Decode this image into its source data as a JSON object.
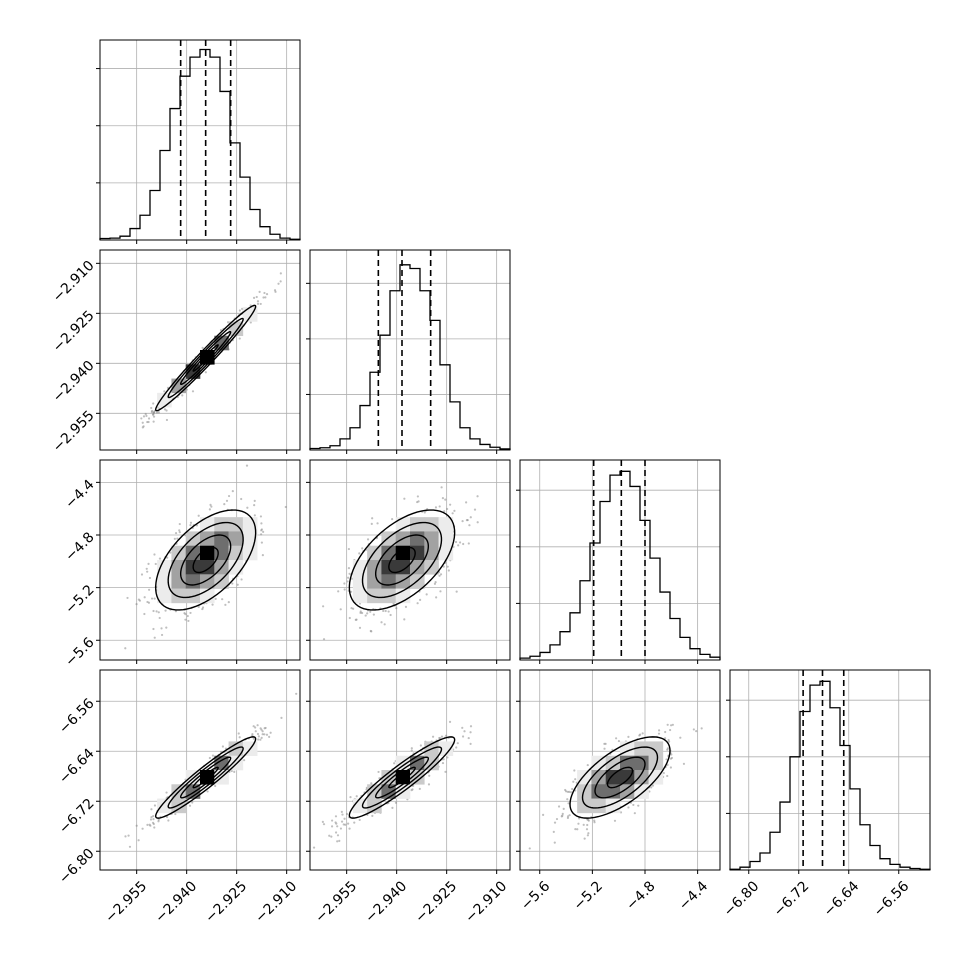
{
  "chart_data": {
    "type": "corner",
    "grid": true,
    "parameters": [
      {
        "range": [
          -2.966,
          -2.906
        ],
        "ticks": [
          -2.955,
          -2.94,
          -2.925,
          -2.91
        ],
        "tick_labels": [
          "−2.955",
          "−2.940",
          "−2.925",
          "−2.910"
        ],
        "quantiles": [
          -2.9418,
          -2.9343,
          -2.9268
        ],
        "hist_bins": [
          0.008,
          0.01,
          0.02,
          0.06,
          0.13,
          0.26,
          0.47,
          0.69,
          0.86,
          0.96,
          1.0,
          0.96,
          0.78,
          0.51,
          0.33,
          0.16,
          0.07,
          0.03,
          0.01,
          0.004
        ],
        "hist_max": 1.05
      },
      {
        "range": [
          -2.966,
          -2.906
        ],
        "ticks": [
          -2.955,
          -2.94,
          -2.925,
          -2.91
        ],
        "tick_labels": [
          "−2.955",
          "−2.940",
          "−2.925",
          "−2.910"
        ],
        "quantiles": [
          -2.9455,
          -2.9384,
          -2.9298
        ],
        "hist_bins": [
          0.008,
          0.012,
          0.023,
          0.06,
          0.12,
          0.24,
          0.42,
          0.62,
          0.86,
          1.0,
          0.98,
          0.86,
          0.7,
          0.46,
          0.26,
          0.12,
          0.06,
          0.03,
          0.015,
          0.006
        ],
        "hist_max": 1.08
      },
      {
        "range": [
          -5.75,
          -4.23
        ],
        "ticks": [
          -5.6,
          -5.2,
          -4.8,
          -4.4
        ],
        "tick_labels": [
          "−5.6",
          "−5.2",
          "−4.8",
          "−4.4"
        ],
        "quantiles": [
          -5.19,
          -4.98,
          -4.8
        ],
        "hist_bins": [
          0.01,
          0.02,
          0.04,
          0.08,
          0.15,
          0.25,
          0.42,
          0.62,
          0.84,
          0.98,
          1.0,
          0.92,
          0.74,
          0.54,
          0.36,
          0.22,
          0.12,
          0.06,
          0.03,
          0.015
        ],
        "hist_max": 1.06
      },
      {
        "range": [
          -6.83,
          -6.51
        ],
        "ticks": [
          -6.8,
          -6.72,
          -6.64,
          -6.56
        ],
        "tick_labels": [
          "−6.80",
          "−6.72",
          "−6.64",
          "−6.56"
        ],
        "quantiles": [
          -6.713,
          -6.682,
          -6.648
        ],
        "hist_bins": [
          0.004,
          0.015,
          0.045,
          0.09,
          0.2,
          0.36,
          0.6,
          0.84,
          0.98,
          1.0,
          0.86,
          0.66,
          0.43,
          0.24,
          0.13,
          0.06,
          0.03,
          0.015,
          0.008,
          0.004
        ],
        "hist_max": 1.06
      }
    ],
    "means": [
      -2.9343,
      -2.9384,
      -4.99,
      -6.682
    ],
    "sds": [
      0.0075,
      0.0079,
      0.19,
      0.0325
    ],
    "correlations": [
      [
        1,
        0.98,
        0.55,
        0.95
      ],
      [
        0.98,
        1,
        0.55,
        0.93
      ],
      [
        0.55,
        0.55,
        1,
        0.66
      ],
      [
        0.95,
        0.93,
        0.66,
        1
      ]
    ],
    "contour_levels_sigma": [
      0.5,
      1,
      1.5,
      2
    ],
    "n_scatter_points": 700,
    "colors": {
      "line": "#000000",
      "scatter": "#8a8a8a",
      "grid": "#b0b0b0",
      "density": [
        "#ececec",
        "#cacaca",
        "#a2a2a2",
        "#6e6e6e",
        "#3a3a3a",
        "#000000"
      ]
    }
  }
}
